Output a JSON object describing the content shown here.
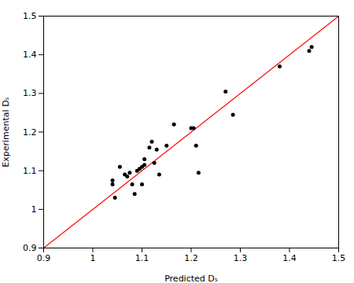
{
  "chart_data": {
    "type": "scatter",
    "xlabel": "Predicted Dₛ",
    "ylabel": "Experimental Dₛ",
    "xlim": [
      0.9,
      1.5
    ],
    "ylim": [
      0.9,
      1.5
    ],
    "xticks": [
      0.9,
      1,
      1.1,
      1.2,
      1.3,
      1.4,
      1.5
    ],
    "yticks": [
      0.9,
      1,
      1.1,
      1.2,
      1.3,
      1.4,
      1.5
    ],
    "series": [
      {
        "type": "line",
        "color": "#ff0000",
        "x": [
          0.9,
          1.5
        ],
        "values": [
          0.9,
          1.5
        ]
      },
      {
        "type": "scatter",
        "color": "#000000",
        "x": [
          1.04,
          1.04,
          1.045,
          1.055,
          1.065,
          1.07,
          1.075,
          1.08,
          1.085,
          1.09,
          1.095,
          1.1,
          1.1,
          1.105,
          1.105,
          1.115,
          1.12,
          1.125,
          1.13,
          1.135,
          1.15,
          1.165,
          1.2,
          1.205,
          1.21,
          1.215,
          1.27,
          1.285,
          1.38,
          1.44,
          1.445
        ],
        "values": [
          1.065,
          1.075,
          1.03,
          1.11,
          1.09,
          1.085,
          1.095,
          1.065,
          1.04,
          1.1,
          1.105,
          1.11,
          1.065,
          1.115,
          1.13,
          1.16,
          1.175,
          1.12,
          1.155,
          1.09,
          1.165,
          1.22,
          1.21,
          1.21,
          1.165,
          1.095,
          1.305,
          1.245,
          1.37,
          1.41,
          1.42
        ]
      }
    ]
  }
}
